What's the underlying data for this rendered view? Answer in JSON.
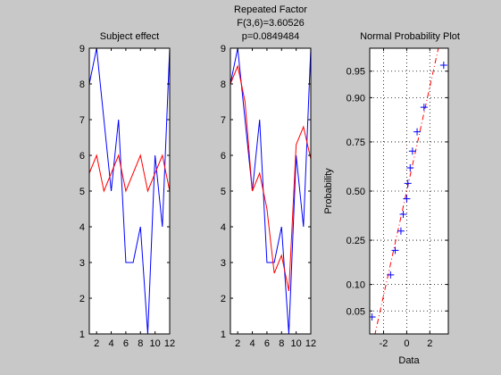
{
  "colors": {
    "figure_background": "#c8c8c8",
    "axes_background": "#ffffff",
    "series_blue": "#0000ff",
    "series_red": "#ff0000",
    "text": "#000000"
  },
  "chart_data": [
    {
      "type": "line",
      "title": "Subject effect",
      "x": [
        1,
        2,
        3,
        4,
        5,
        6,
        7,
        8,
        9,
        10,
        11,
        12
      ],
      "xticks": [
        "2",
        "4",
        "6",
        "8",
        "10",
        "12"
      ],
      "xtick_values": [
        2,
        4,
        6,
        8,
        10,
        12
      ],
      "xlim": [
        1,
        12
      ],
      "ylim": [
        1,
        9
      ],
      "yticks": [
        "1",
        "2",
        "3",
        "4",
        "5",
        "6",
        "7",
        "8",
        "9"
      ],
      "ytick_values": [
        1,
        2,
        3,
        4,
        5,
        6,
        7,
        8,
        9
      ],
      "grid": false,
      "series": [
        {
          "color": "#0000ff",
          "values": [
            8,
            9,
            7,
            5,
            7,
            3,
            3,
            4,
            1,
            6,
            4,
            9
          ]
        },
        {
          "color": "#ff0000",
          "values": [
            5.5,
            6,
            5,
            5.5,
            6,
            5,
            5.5,
            6,
            5,
            5.5,
            6,
            5
          ]
        }
      ]
    },
    {
      "type": "line",
      "title": "Repeated Factor",
      "subtitle": [
        "F(3,6)=3.60526",
        "p=0.0849484"
      ],
      "x": [
        1,
        2,
        3,
        4,
        5,
        6,
        7,
        8,
        9,
        10,
        11,
        12
      ],
      "xticks": [
        "2",
        "4",
        "6",
        "8",
        "10",
        "12"
      ],
      "xtick_values": [
        2,
        4,
        6,
        8,
        10,
        12
      ],
      "xlim": [
        1,
        12
      ],
      "ylim": [
        1,
        9
      ],
      "yticks": [
        "1",
        "2",
        "3",
        "4",
        "5",
        "6",
        "7",
        "8",
        "9"
      ],
      "ytick_values": [
        1,
        2,
        3,
        4,
        5,
        6,
        7,
        8,
        9
      ],
      "grid": false,
      "series": [
        {
          "color": "#0000ff",
          "values": [
            8,
            9,
            7,
            5,
            7,
            3,
            3,
            4,
            1,
            6,
            4,
            9
          ]
        },
        {
          "color": "#ff0000",
          "values": [
            8,
            8.5,
            7.5,
            5,
            5.5,
            4.5,
            2.7,
            3.2,
            2.2,
            6.3,
            6.8,
            5.9
          ]
        }
      ]
    },
    {
      "type": "scatter",
      "title": "Normal Probability Plot",
      "xlabel": "Data",
      "ylabel": "Probability",
      "xlim": [
        -3.2,
        3.6
      ],
      "xticks": [
        "-2",
        "0",
        "2"
      ],
      "xtick_values": [
        -2,
        0,
        2
      ],
      "yscale": "normal-probability",
      "ylim": [
        0.025,
        0.975
      ],
      "yticks": [
        "0.05",
        "0.10",
        "0.25",
        "0.50",
        "0.75",
        "0.90",
        "0.95"
      ],
      "ytick_values": [
        0.05,
        0.1,
        0.25,
        0.5,
        0.75,
        0.9,
        0.95
      ],
      "grid": true,
      "marker": "+",
      "marker_color": "#0000ff",
      "points": [
        {
          "x": -3.0,
          "y": 0.042
        },
        {
          "x": -1.4,
          "y": 0.125
        },
        {
          "x": -1.0,
          "y": 0.208
        },
        {
          "x": -0.5,
          "y": 0.292
        },
        {
          "x": -0.3,
          "y": 0.375
        },
        {
          "x": 0.0,
          "y": 0.458
        },
        {
          "x": 0.1,
          "y": 0.542
        },
        {
          "x": 0.3,
          "y": 0.625
        },
        {
          "x": 0.5,
          "y": 0.708
        },
        {
          "x": 0.9,
          "y": 0.792
        },
        {
          "x": 1.5,
          "y": 0.875
        },
        {
          "x": 3.2,
          "y": 0.958
        }
      ],
      "reference_line": {
        "color": "#ff0000",
        "style": "dash-dot",
        "x": [
          -3.2,
          3.6
        ],
        "y": [
          0.011,
          0.995
        ]
      }
    }
  ]
}
